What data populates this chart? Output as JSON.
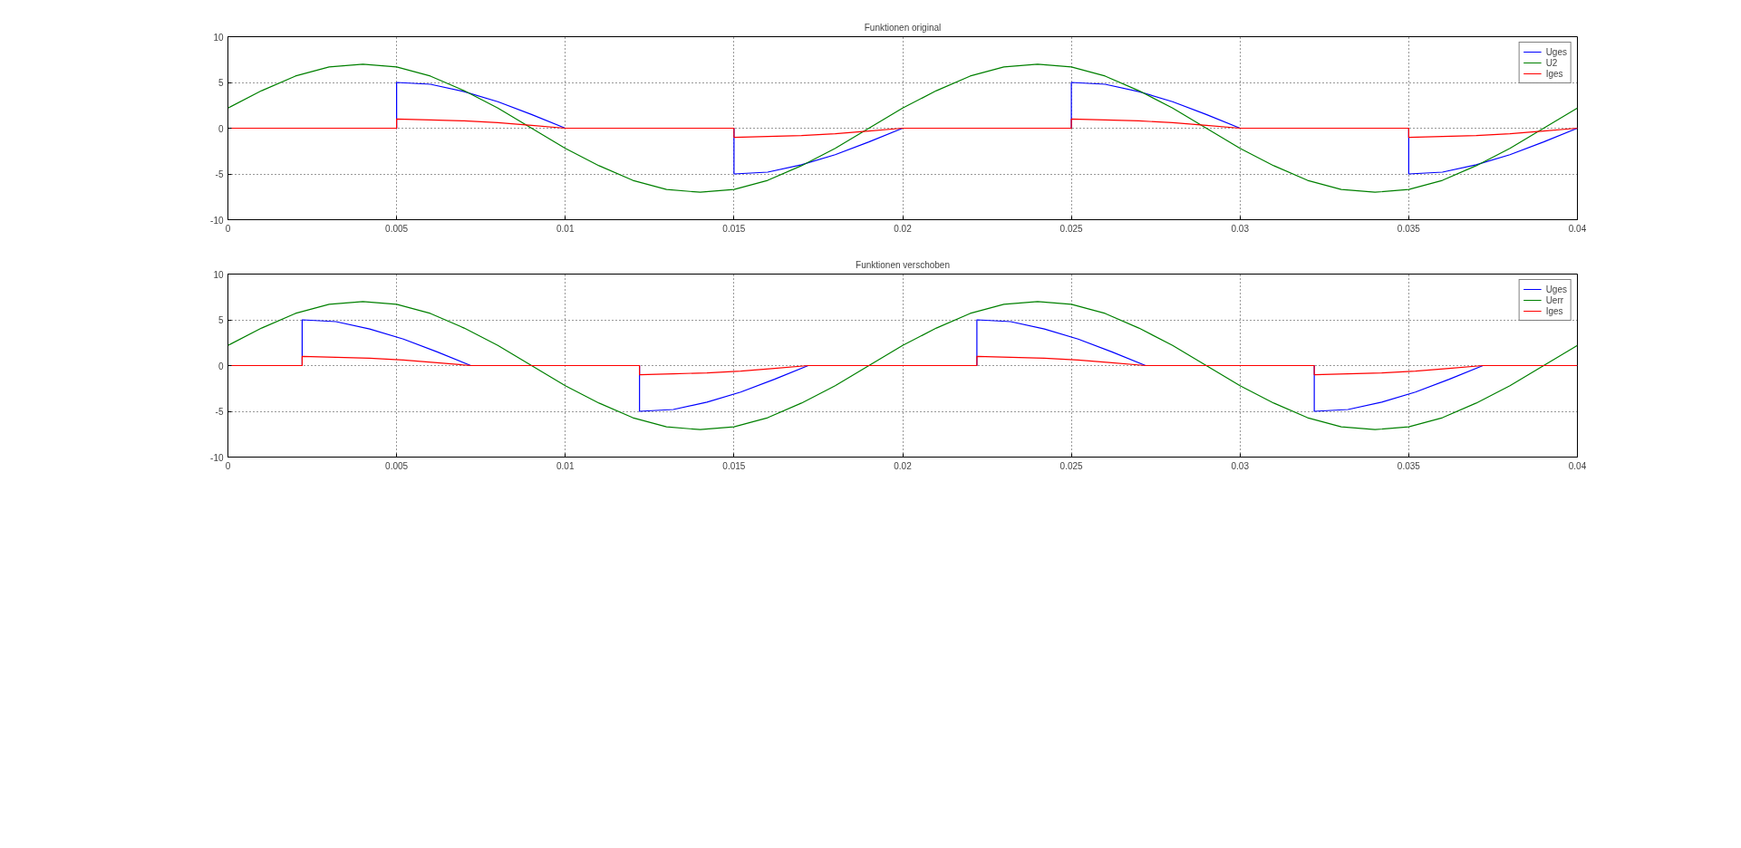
{
  "chart_data": [
    {
      "type": "line",
      "title": "Funktionen original",
      "xlim": [
        0,
        0.04
      ],
      "ylim": [
        -10,
        10
      ],
      "xticks": [
        0,
        0.005,
        0.01,
        0.015,
        0.02,
        0.025,
        0.03,
        0.035,
        0.04
      ],
      "yticks": [
        -10,
        -5,
        0,
        5,
        10
      ],
      "grid": true,
      "legend": "top right",
      "series": [
        {
          "name": "Uges",
          "color": "#0000ff",
          "x": [
            0,
            0.005,
            0.005,
            0.006,
            0.007,
            0.008,
            0.009,
            0.01,
            0.015,
            0.015,
            0.016,
            0.017,
            0.018,
            0.019,
            0.02,
            0.025,
            0.025,
            0.026,
            0.027,
            0.028,
            0.029,
            0.03,
            0.035,
            0.035,
            0.036,
            0.037,
            0.038,
            0.039,
            0.04
          ],
          "values": [
            0,
            0,
            5,
            4.8,
            4,
            2.9,
            1.5,
            0,
            0,
            -5,
            -4.8,
            -4,
            -2.9,
            -1.5,
            0,
            0,
            5,
            4.8,
            4,
            2.9,
            1.5,
            0,
            0,
            -5,
            -4.8,
            -4,
            -2.9,
            -1.5,
            0
          ]
        },
        {
          "name": "U2",
          "color": "#008000",
          "x": [
            0,
            0.001,
            0.002,
            0.003,
            0.004,
            0.005,
            0.006,
            0.007,
            0.008,
            0.009,
            0.01,
            0.011,
            0.012,
            0.013,
            0.014,
            0.015,
            0.016,
            0.017,
            0.018,
            0.019,
            0.02,
            0.021,
            0.022,
            0.023,
            0.024,
            0.025,
            0.026,
            0.027,
            0.028,
            0.029,
            0.03,
            0.031,
            0.032,
            0.033,
            0.034,
            0.035,
            0.036,
            0.037,
            0.038,
            0.039,
            0.04
          ],
          "values": [
            2.2,
            4.1,
            5.7,
            6.7,
            7,
            6.7,
            5.7,
            4.1,
            2.2,
            0,
            -2.2,
            -4.1,
            -5.7,
            -6.7,
            -7,
            -6.7,
            -5.7,
            -4.1,
            -2.2,
            0,
            2.2,
            4.1,
            5.7,
            6.7,
            7,
            6.7,
            5.7,
            4.1,
            2.2,
            0,
            -2.2,
            -4.1,
            -5.7,
            -6.7,
            -7,
            -6.7,
            -5.7,
            -4.1,
            -2.2,
            0,
            2.2
          ]
        },
        {
          "name": "Iges",
          "color": "#ff0000",
          "x": [
            0,
            0.005,
            0.005,
            0.006,
            0.007,
            0.008,
            0.009,
            0.01,
            0.015,
            0.015,
            0.016,
            0.017,
            0.018,
            0.019,
            0.02,
            0.025,
            0.025,
            0.026,
            0.027,
            0.028,
            0.029,
            0.03,
            0.035,
            0.035,
            0.036,
            0.037,
            0.038,
            0.039,
            0.04
          ],
          "values": [
            0,
            0,
            1,
            0.9,
            0.8,
            0.6,
            0.3,
            0,
            0,
            -1,
            -0.9,
            -0.8,
            -0.6,
            -0.3,
            0,
            0,
            1,
            0.9,
            0.8,
            0.6,
            0.3,
            0,
            0,
            -1,
            -0.9,
            -0.8,
            -0.6,
            -0.3,
            0
          ]
        }
      ]
    },
    {
      "type": "line",
      "title": "Funktionen verschoben",
      "xlim": [
        0,
        0.04
      ],
      "ylim": [
        -10,
        10
      ],
      "xticks": [
        0,
        0.005,
        0.01,
        0.015,
        0.02,
        0.025,
        0.03,
        0.035,
        0.04
      ],
      "yticks": [
        -10,
        -5,
        0,
        5,
        10
      ],
      "grid": true,
      "legend": "top right",
      "series": [
        {
          "name": "Uges",
          "color": "#0000ff",
          "x": [
            0,
            0.0022,
            0.0022,
            0.0032,
            0.0042,
            0.0052,
            0.0062,
            0.0072,
            0.0122,
            0.0122,
            0.0132,
            0.0142,
            0.0152,
            0.0162,
            0.0172,
            0.0222,
            0.0222,
            0.0232,
            0.0242,
            0.0252,
            0.0262,
            0.0272,
            0.0322,
            0.0322,
            0.0332,
            0.0342,
            0.0352,
            0.0362,
            0.0372,
            0.04
          ],
          "values": [
            0,
            0,
            5,
            4.8,
            4,
            2.9,
            1.5,
            0,
            0,
            -5,
            -4.8,
            -4,
            -2.9,
            -1.5,
            0,
            0,
            5,
            4.8,
            4,
            2.9,
            1.5,
            0,
            0,
            -5,
            -4.8,
            -4,
            -2.9,
            -1.5,
            0,
            0
          ]
        },
        {
          "name": "Uerr",
          "color": "#008000",
          "x": [
            0,
            0.001,
            0.002,
            0.003,
            0.004,
            0.005,
            0.006,
            0.007,
            0.008,
            0.009,
            0.01,
            0.011,
            0.012,
            0.013,
            0.014,
            0.015,
            0.016,
            0.017,
            0.018,
            0.019,
            0.02,
            0.021,
            0.022,
            0.023,
            0.024,
            0.025,
            0.026,
            0.027,
            0.028,
            0.029,
            0.03,
            0.031,
            0.032,
            0.033,
            0.034,
            0.035,
            0.036,
            0.037,
            0.038,
            0.039,
            0.04
          ],
          "values": [
            2.2,
            4.1,
            5.7,
            6.7,
            7,
            6.7,
            5.7,
            4.1,
            2.2,
            0,
            -2.2,
            -4.1,
            -5.7,
            -6.7,
            -7,
            -6.7,
            -5.7,
            -4.1,
            -2.2,
            0,
            2.2,
            4.1,
            5.7,
            6.7,
            7,
            6.7,
            5.7,
            4.1,
            2.2,
            0,
            -2.2,
            -4.1,
            -5.7,
            -6.7,
            -7,
            -6.7,
            -5.7,
            -4.1,
            -2.2,
            0,
            2.2
          ]
        },
        {
          "name": "Iges",
          "color": "#ff0000",
          "x": [
            0,
            0.0022,
            0.0022,
            0.0032,
            0.0042,
            0.0052,
            0.0062,
            0.0072,
            0.0122,
            0.0122,
            0.0132,
            0.0142,
            0.0152,
            0.0162,
            0.0172,
            0.0222,
            0.0222,
            0.0232,
            0.0242,
            0.0252,
            0.0262,
            0.0272,
            0.0322,
            0.0322,
            0.0332,
            0.0342,
            0.0352,
            0.0362,
            0.0372,
            0.04
          ],
          "values": [
            0,
            0,
            1,
            0.9,
            0.8,
            0.6,
            0.3,
            0,
            0,
            -1,
            -0.9,
            -0.8,
            -0.6,
            -0.3,
            0,
            0,
            1,
            0.9,
            0.8,
            0.6,
            0.3,
            0,
            0,
            -1,
            -0.9,
            -0.8,
            -0.6,
            -0.3,
            0,
            0
          ]
        }
      ]
    }
  ]
}
